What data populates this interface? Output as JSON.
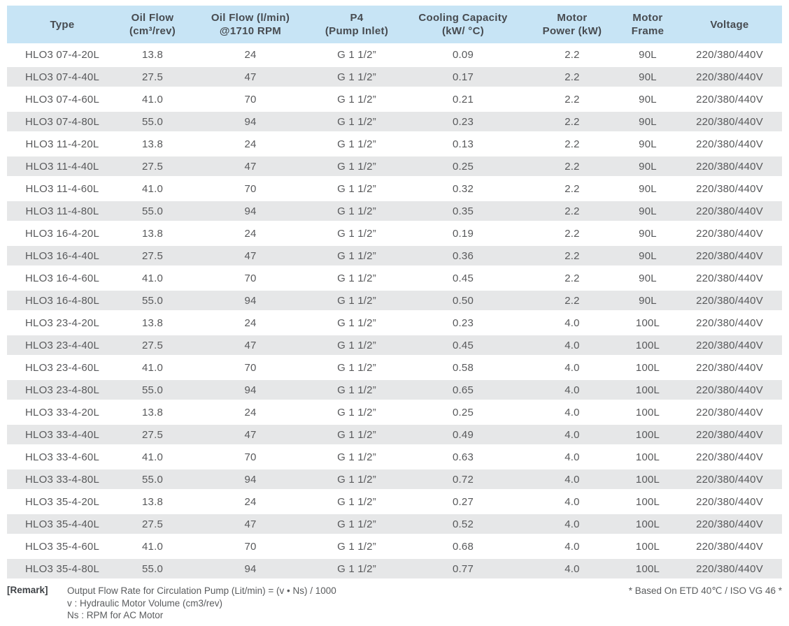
{
  "colors": {
    "header_bg": "#c7e4f5",
    "stripe_bg": "#e6e7e8",
    "body_text": "#58595b",
    "header_text": "#474b50"
  },
  "table": {
    "columns": [
      {
        "id": "type",
        "lines": [
          "Type"
        ]
      },
      {
        "id": "oil-flow-rev",
        "lines": [
          "Oil Flow",
          "(cm³/rev)"
        ]
      },
      {
        "id": "oil-flow-rpm",
        "lines": [
          "Oil Flow (l/min)",
          "@1710 RPM"
        ]
      },
      {
        "id": "pump-inlet",
        "lines": [
          "P4",
          "(Pump Inlet)"
        ]
      },
      {
        "id": "cooling",
        "lines": [
          "Cooling Capacity",
          "(kW/ °C)"
        ]
      },
      {
        "id": "motor-power",
        "lines": [
          "Motor",
          "Power (kW)"
        ]
      },
      {
        "id": "motor-frame",
        "lines": [
          "Motor",
          "Frame"
        ]
      },
      {
        "id": "voltage",
        "lines": [
          "Voltage"
        ]
      }
    ],
    "rows": [
      [
        "HLO3 07-4-20L",
        "13.8",
        "24",
        "G 1 1/2”",
        "0.09",
        "2.2",
        "90L",
        "220/380/440V"
      ],
      [
        "HLO3 07-4-40L",
        "27.5",
        "47",
        "G 1 1/2”",
        "0.17",
        "2.2",
        "90L",
        "220/380/440V"
      ],
      [
        "HLO3 07-4-60L",
        "41.0",
        "70",
        "G 1 1/2”",
        "0.21",
        "2.2",
        "90L",
        "220/380/440V"
      ],
      [
        "HLO3 07-4-80L",
        "55.0",
        "94",
        "G 1 1/2”",
        "0.23",
        "2.2",
        "90L",
        "220/380/440V"
      ],
      [
        "HLO3 11-4-20L",
        "13.8",
        "24",
        "G 1 1/2”",
        "0.13",
        "2.2",
        "90L",
        "220/380/440V"
      ],
      [
        "HLO3 11-4-40L",
        "27.5",
        "47",
        "G 1 1/2”",
        "0.25",
        "2.2",
        "90L",
        "220/380/440V"
      ],
      [
        "HLO3 11-4-60L",
        "41.0",
        "70",
        "G 1 1/2”",
        "0.32",
        "2.2",
        "90L",
        "220/380/440V"
      ],
      [
        "HLO3 11-4-80L",
        "55.0",
        "94",
        "G 1 1/2”",
        "0.35",
        "2.2",
        "90L",
        "220/380/440V"
      ],
      [
        "HLO3 16-4-20L",
        "13.8",
        "24",
        "G 1 1/2”",
        "0.19",
        "2.2",
        "90L",
        "220/380/440V"
      ],
      [
        "HLO3 16-4-40L",
        "27.5",
        "47",
        "G 1 1/2”",
        "0.36",
        "2.2",
        "90L",
        "220/380/440V"
      ],
      [
        "HLO3 16-4-60L",
        "41.0",
        "70",
        "G 1 1/2”",
        "0.45",
        "2.2",
        "90L",
        "220/380/440V"
      ],
      [
        "HLO3 16-4-80L",
        "55.0",
        "94",
        "G 1 1/2”",
        "0.50",
        "2.2",
        "90L",
        "220/380/440V"
      ],
      [
        "HLO3 23-4-20L",
        "13.8",
        "24",
        "G 1 1/2”",
        "0.23",
        "4.0",
        "100L",
        "220/380/440V"
      ],
      [
        "HLO3 23-4-40L",
        "27.5",
        "47",
        "G 1 1/2”",
        "0.45",
        "4.0",
        "100L",
        "220/380/440V"
      ],
      [
        "HLO3 23-4-60L",
        "41.0",
        "70",
        "G 1 1/2”",
        "0.58",
        "4.0",
        "100L",
        "220/380/440V"
      ],
      [
        "HLO3 23-4-80L",
        "55.0",
        "94",
        "G 1 1/2”",
        "0.65",
        "4.0",
        "100L",
        "220/380/440V"
      ],
      [
        "HLO3 33-4-20L",
        "13.8",
        "24",
        "G 1 1/2”",
        "0.25",
        "4.0",
        "100L",
        "220/380/440V"
      ],
      [
        "HLO3 33-4-40L",
        "27.5",
        "47",
        "G 1 1/2”",
        "0.49",
        "4.0",
        "100L",
        "220/380/440V"
      ],
      [
        "HLO3 33-4-60L",
        "41.0",
        "70",
        "G 1 1/2”",
        "0.63",
        "4.0",
        "100L",
        "220/380/440V"
      ],
      [
        "HLO3 33-4-80L",
        "55.0",
        "94",
        "G 1 1/2”",
        "0.72",
        "4.0",
        "100L",
        "220/380/440V"
      ],
      [
        "HLO3 35-4-20L",
        "13.8",
        "24",
        "G 1 1/2”",
        "0.27",
        "4.0",
        "100L",
        "220/380/440V"
      ],
      [
        "HLO3 35-4-40L",
        "27.5",
        "47",
        "G 1 1/2”",
        "0.52",
        "4.0",
        "100L",
        "220/380/440V"
      ],
      [
        "HLO3 35-4-60L",
        "41.0",
        "70",
        "G 1 1/2”",
        "0.68",
        "4.0",
        "100L",
        "220/380/440V"
      ],
      [
        "HLO3 35-4-80L",
        "55.0",
        "94",
        "G 1 1/2”",
        "0.77",
        "4.0",
        "100L",
        "220/380/440V"
      ]
    ]
  },
  "footer": {
    "remark_label": "[Remark]",
    "remark_lines": [
      "Output Flow Rate for Circulation Pump (Lit/min) = (v • Ns) / 1000",
      "v : Hydraulic Motor Volume (cm3/rev)",
      "Ns : RPM for AC Motor"
    ],
    "note_right": "* Based On ETD 40℃ / ISO VG 46 *"
  }
}
